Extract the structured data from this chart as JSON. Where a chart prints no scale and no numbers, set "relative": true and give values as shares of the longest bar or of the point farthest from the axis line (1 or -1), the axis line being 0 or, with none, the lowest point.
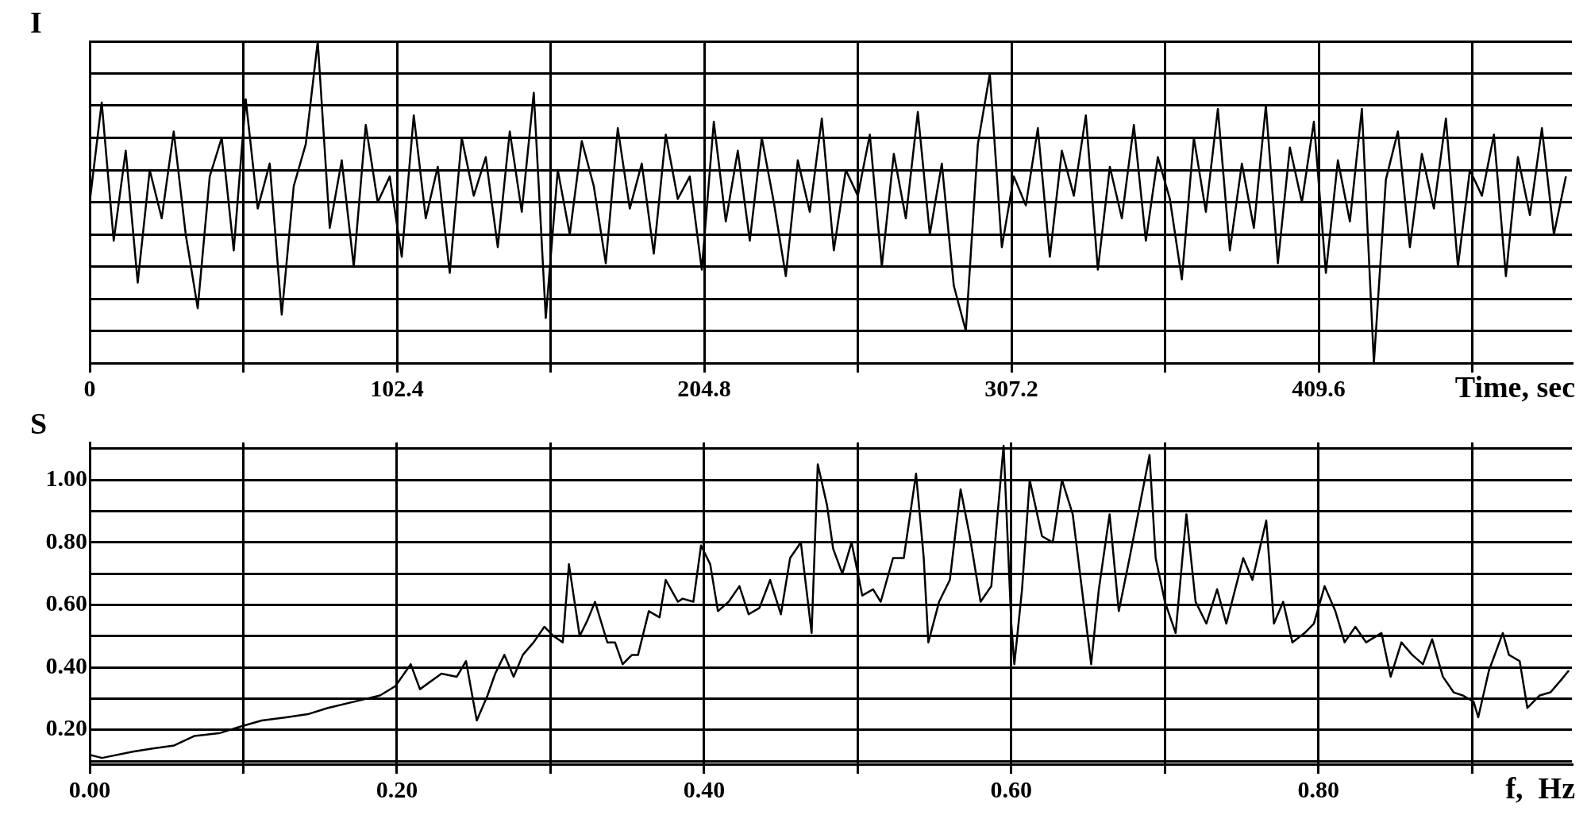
{
  "chart_data": [
    {
      "type": "line",
      "ylabel": "I",
      "xlabel": "Time, sec",
      "relative": true,
      "grid": true,
      "color": "#000000",
      "x": [
        0,
        4,
        8,
        12,
        16,
        20,
        24,
        28,
        32,
        36,
        40,
        44,
        48,
        52,
        56,
        60,
        64,
        68,
        72,
        76,
        80,
        84,
        88,
        92,
        96,
        100,
        104,
        108,
        112,
        116,
        120,
        124,
        128,
        132,
        136,
        140,
        144,
        148,
        152,
        156,
        160,
        164,
        168,
        172,
        176,
        180,
        184,
        188,
        192,
        196,
        200,
        204,
        208,
        212,
        216,
        220,
        224,
        228,
        232,
        236,
        240,
        244,
        248,
        252,
        256,
        260,
        264,
        268,
        272,
        276,
        280,
        284,
        288,
        292,
        296,
        300,
        304,
        308,
        312,
        316,
        320,
        324,
        328,
        332,
        336,
        340,
        344,
        348,
        352,
        356,
        360,
        364,
        368,
        372,
        376,
        380,
        384,
        388,
        392,
        396,
        400,
        404,
        408,
        412,
        416,
        420,
        424,
        428,
        432,
        436,
        440,
        444,
        448,
        452,
        456,
        460,
        464,
        468,
        472,
        476,
        480,
        484,
        488,
        492
      ],
      "values": [
        0.5,
        0.81,
        0.38,
        0.66,
        0.25,
        0.6,
        0.45,
        0.72,
        0.4,
        0.17,
        0.58,
        0.7,
        0.35,
        0.82,
        0.48,
        0.62,
        0.15,
        0.55,
        0.68,
        1.0,
        0.42,
        0.63,
        0.3,
        0.74,
        0.5,
        0.58,
        0.33,
        0.77,
        0.45,
        0.61,
        0.28,
        0.7,
        0.52,
        0.64,
        0.36,
        0.72,
        0.47,
        0.84,
        0.14,
        0.6,
        0.4,
        0.69,
        0.55,
        0.31,
        0.73,
        0.48,
        0.62,
        0.34,
        0.71,
        0.51,
        0.58,
        0.29,
        0.75,
        0.44,
        0.66,
        0.38,
        0.7,
        0.5,
        0.27,
        0.63,
        0.47,
        0.76,
        0.35,
        0.6,
        0.52,
        0.71,
        0.3,
        0.65,
        0.45,
        0.78,
        0.4,
        0.62,
        0.24,
        0.1,
        0.68,
        0.9,
        0.36,
        0.58,
        0.49,
        0.73,
        0.33,
        0.66,
        0.52,
        0.77,
        0.29,
        0.61,
        0.45,
        0.74,
        0.38,
        0.64,
        0.51,
        0.26,
        0.7,
        0.47,
        0.79,
        0.35,
        0.62,
        0.42,
        0.8,
        0.31,
        0.67,
        0.5,
        0.75,
        0.28,
        0.63,
        0.44,
        0.79,
        0.0,
        0.57,
        0.72,
        0.36,
        0.65,
        0.48,
        0.76,
        0.3,
        0.6,
        0.52,
        0.71,
        0.27,
        0.64,
        0.46,
        0.73,
        0.4,
        0.58
      ],
      "xlim": [
        0,
        494
      ],
      "xticks": [
        0,
        {
          "value": 51.2,
          "label": null
        },
        102.4,
        {
          "value": 153.6,
          "label": null
        },
        204.8,
        {
          "value": 256,
          "label": null
        },
        307.2,
        {
          "value": 358.4,
          "label": null
        },
        409.6,
        {
          "value": 460.8,
          "label": null
        }
      ]
    },
    {
      "type": "line",
      "ylabel": "S",
      "xlabel": "f,  Hz",
      "grid": true,
      "color": "#000000",
      "x": [
        0.0,
        0.008,
        0.028,
        0.041,
        0.055,
        0.068,
        0.085,
        0.098,
        0.112,
        0.128,
        0.142,
        0.155,
        0.172,
        0.189,
        0.199,
        0.209,
        0.215,
        0.229,
        0.239,
        0.245,
        0.252,
        0.259,
        0.264,
        0.27,
        0.276,
        0.282,
        0.289,
        0.296,
        0.302,
        0.308,
        0.312,
        0.319,
        0.324,
        0.329,
        0.337,
        0.342,
        0.347,
        0.353,
        0.357,
        0.364,
        0.371,
        0.375,
        0.383,
        0.386,
        0.393,
        0.398,
        0.404,
        0.409,
        0.416,
        0.423,
        0.429,
        0.436,
        0.443,
        0.45,
        0.456,
        0.463,
        0.47,
        0.474,
        0.48,
        0.484,
        0.49,
        0.496,
        0.503,
        0.51,
        0.515,
        0.523,
        0.53,
        0.538,
        0.543,
        0.546,
        0.553,
        0.56,
        0.567,
        0.573,
        0.58,
        0.587,
        0.595,
        0.6,
        0.602,
        0.607,
        0.612,
        0.62,
        0.627,
        0.633,
        0.64,
        0.647,
        0.652,
        0.657,
        0.664,
        0.67,
        0.677,
        0.69,
        0.694,
        0.7,
        0.707,
        0.714,
        0.72,
        0.727,
        0.734,
        0.74,
        0.751,
        0.757,
        0.766,
        0.771,
        0.777,
        0.783,
        0.791,
        0.797,
        0.804,
        0.811,
        0.817,
        0.824,
        0.831,
        0.841,
        0.847,
        0.854,
        0.861,
        0.868,
        0.874,
        0.881,
        0.888,
        0.894,
        0.901,
        0.904,
        0.911,
        0.92,
        0.924,
        0.931,
        0.936,
        0.944,
        0.951,
        0.958,
        0.963
      ],
      "values": [
        0.12,
        0.11,
        0.13,
        0.14,
        0.15,
        0.18,
        0.19,
        0.21,
        0.23,
        0.24,
        0.25,
        0.27,
        0.29,
        0.31,
        0.34,
        0.41,
        0.33,
        0.38,
        0.37,
        0.42,
        0.23,
        0.31,
        0.38,
        0.44,
        0.37,
        0.44,
        0.48,
        0.53,
        0.5,
        0.48,
        0.73,
        0.5,
        0.55,
        0.61,
        0.48,
        0.48,
        0.41,
        0.44,
        0.44,
        0.58,
        0.56,
        0.68,
        0.61,
        0.62,
        0.61,
        0.79,
        0.73,
        0.58,
        0.61,
        0.66,
        0.57,
        0.59,
        0.68,
        0.57,
        0.75,
        0.8,
        0.51,
        1.05,
        0.92,
        0.78,
        0.7,
        0.8,
        0.63,
        0.65,
        0.61,
        0.75,
        0.75,
        1.02,
        0.75,
        0.48,
        0.61,
        0.68,
        0.97,
        0.82,
        0.61,
        0.66,
        1.11,
        0.54,
        0.41,
        0.65,
        1.0,
        0.82,
        0.8,
        1.0,
        0.89,
        0.61,
        0.41,
        0.65,
        0.89,
        0.58,
        0.75,
        1.08,
        0.75,
        0.61,
        0.51,
        0.89,
        0.61,
        0.54,
        0.65,
        0.54,
        0.75,
        0.68,
        0.87,
        0.54,
        0.61,
        0.48,
        0.51,
        0.54,
        0.66,
        0.58,
        0.48,
        0.53,
        0.48,
        0.51,
        0.37,
        0.48,
        0.44,
        0.41,
        0.49,
        0.37,
        0.32,
        0.31,
        0.29,
        0.24,
        0.39,
        0.51,
        0.44,
        0.42,
        0.27,
        0.31,
        0.32,
        0.36,
        0.39
      ],
      "xlim": [
        0,
        0.965
      ],
      "ylim": [
        0.09,
        1.12
      ],
      "xticks": [
        {
          "value": 0,
          "label": "0.00"
        },
        {
          "value": 0.1,
          "label": null
        },
        {
          "value": 0.2,
          "label": "0.20"
        },
        {
          "value": 0.3,
          "label": null
        },
        {
          "value": 0.4,
          "label": "0.40"
        },
        {
          "value": 0.5,
          "label": null
        },
        {
          "value": 0.6,
          "label": "0.60"
        },
        {
          "value": 0.7,
          "label": null
        },
        {
          "value": 0.8,
          "label": "0.80"
        },
        {
          "value": 0.9,
          "label": null
        }
      ],
      "yticks": [
        {
          "value": 0.1,
          "label": null
        },
        {
          "value": 0.2,
          "label": "0.20"
        },
        {
          "value": 0.3,
          "label": null
        },
        {
          "value": 0.4,
          "label": "0.40"
        },
        {
          "value": 0.5,
          "label": null
        },
        {
          "value": 0.6,
          "label": "0.60"
        },
        {
          "value": 0.7,
          "label": null
        },
        {
          "value": 0.8,
          "label": "0.80"
        },
        {
          "value": 0.9,
          "label": null
        },
        {
          "value": 1.0,
          "label": "1.00"
        },
        {
          "value": 1.1,
          "label": null
        }
      ]
    }
  ]
}
